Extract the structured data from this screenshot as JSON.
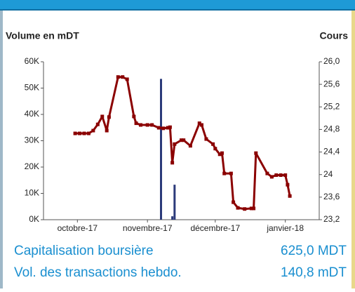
{
  "chart_data": {
    "type": "combo",
    "ylabel": "Volume en mDT",
    "y2label": "Cours",
    "xlim": [
      -15,
      107
    ],
    "xticks": [
      {
        "value": 0,
        "label": "octobre-17"
      },
      {
        "value": 31,
        "label": "novembre-17"
      },
      {
        "value": 61,
        "label": "décembre-17"
      },
      {
        "value": 92,
        "label": "janvier-18"
      }
    ],
    "ylim": [
      0,
      60000
    ],
    "yticks": [
      {
        "value": 0,
        "label": "0K"
      },
      {
        "value": 10000,
        "label": "10K"
      },
      {
        "value": 20000,
        "label": "20K"
      },
      {
        "value": 30000,
        "label": "30K"
      },
      {
        "value": 40000,
        "label": "40K"
      },
      {
        "value": 50000,
        "label": "50K"
      },
      {
        "value": 60000,
        "label": "60K"
      }
    ],
    "y2lim": [
      23.2,
      26.0
    ],
    "y2ticks": [
      {
        "value": 23.2,
        "label": "23,2"
      },
      {
        "value": 23.6,
        "label": "23,6"
      },
      24,
      {
        "value": 24.4,
        "label": "24,4"
      },
      {
        "value": 24.8,
        "label": "24,8"
      },
      {
        "value": 25.2,
        "label": "25,2"
      },
      {
        "value": 25.6,
        "label": "25,6"
      },
      {
        "value": 26.0,
        "label": "26,0"
      }
    ],
    "series": [
      {
        "type": "bar",
        "color": "#2b3a7a",
        "x": [
          37,
          42,
          43
        ],
        "values": [
          53500,
          1300,
          13300
        ]
      },
      {
        "type": "line",
        "axis": "y2",
        "color": "#8b0000",
        "x": [
          -1,
          1,
          3,
          5,
          7,
          9,
          11,
          13,
          14,
          18,
          20,
          22,
          25,
          26,
          28,
          31,
          33,
          36,
          38,
          40,
          41,
          42,
          43,
          46,
          47,
          50,
          54,
          55,
          57,
          60,
          61,
          63,
          64,
          65,
          68,
          69,
          71,
          74,
          77,
          78,
          79,
          84,
          86,
          88,
          90,
          92,
          93,
          94
        ],
        "values": [
          24.73,
          24.73,
          24.73,
          24.73,
          24.78,
          24.89,
          25.03,
          24.78,
          25.02,
          25.73,
          25.73,
          25.69,
          25.03,
          24.91,
          24.88,
          24.88,
          24.88,
          24.83,
          24.82,
          24.83,
          24.84,
          24.21,
          24.54,
          24.61,
          24.61,
          24.51,
          24.91,
          24.88,
          24.63,
          24.54,
          24.46,
          24.36,
          24.38,
          24.02,
          24.02,
          23.51,
          23.41,
          23.39,
          23.4,
          23.4,
          24.38,
          24.02,
          23.96,
          23.99,
          23.99,
          23.99,
          23.82,
          23.62
        ]
      }
    ]
  },
  "stats": [
    {
      "label": "Capitalisation boursière",
      "value": "625,0 MDT"
    },
    {
      "label": "Vol. des transactions hebdo.",
      "value": "140,8 mDT"
    }
  ]
}
